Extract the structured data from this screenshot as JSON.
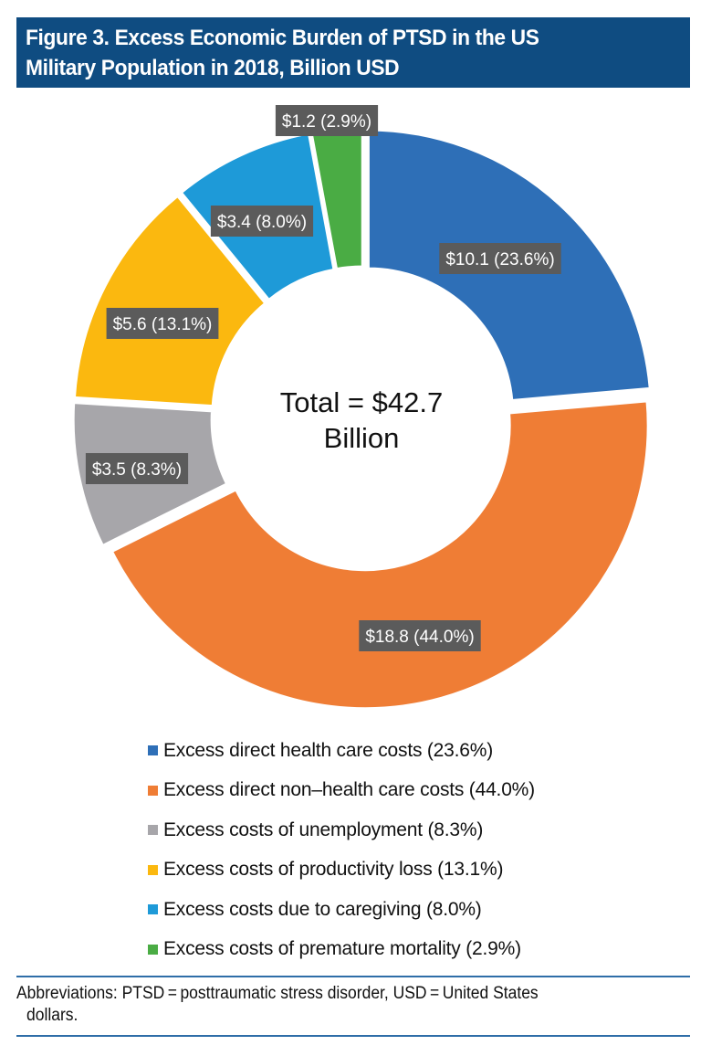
{
  "header": {
    "title_line1": "Figure 3. Excess Economic Burden of PTSD in the US",
    "title_line2": "Military Population in 2018, Billion USD",
    "background_color": "#0f4c81"
  },
  "chart_data": {
    "type": "pie",
    "variant": "donut",
    "title": "Figure 3. Excess Economic Burden of PTSD in the US Military Population in 2018, Billion USD",
    "unit": "Billion USD",
    "center_label_line1": "Total = $42.7",
    "center_label_line2": "Billion",
    "total": 42.7,
    "legend_position": "bottom",
    "slices": [
      {
        "name": "Excess direct health care costs",
        "value": 10.1,
        "percent": 23.6,
        "color": "#2e6fb7",
        "data_label": "$10.1 (23.6%)",
        "legend_label": "Excess direct health care costs (23.6%)"
      },
      {
        "name": "Excess direct non-health care costs",
        "value": 18.8,
        "percent": 44.0,
        "color": "#ef7d35",
        "data_label": "$18.8 (44.0%)",
        "legend_label": "Excess direct non–health care costs (44.0%)"
      },
      {
        "name": "Excess costs of unemployment",
        "value": 3.5,
        "percent": 8.3,
        "color": "#a7a6aa",
        "data_label": "$3.5 (8.3%)",
        "legend_label": "Excess costs of unemployment (8.3%)"
      },
      {
        "name": "Excess costs of productivity loss",
        "value": 5.6,
        "percent": 13.1,
        "color": "#fbb80f",
        "data_label": "$5.6 (13.1%)",
        "legend_label": "Excess costs of productivity loss (13.1%)"
      },
      {
        "name": "Excess costs due to caregiving",
        "value": 3.4,
        "percent": 8.0,
        "color": "#1e9ad8",
        "data_label": "$3.4 (8.0%)",
        "legend_label": "Excess costs due to caregiving (8.0%)"
      },
      {
        "name": "Excess costs of premature mortality",
        "value": 1.2,
        "percent": 2.9,
        "color": "#4aac44",
        "data_label": "$1.2 (2.9%)",
        "legend_label": "Excess costs of premature mortality (2.9%)"
      }
    ],
    "data_label_background": "#5b5b5b"
  },
  "footnote": {
    "line1": "Abbreviations: PTSD = posttraumatic stress disorder, USD = United States",
    "line2": "dollars.",
    "rule_color": "#2f6ea8"
  }
}
